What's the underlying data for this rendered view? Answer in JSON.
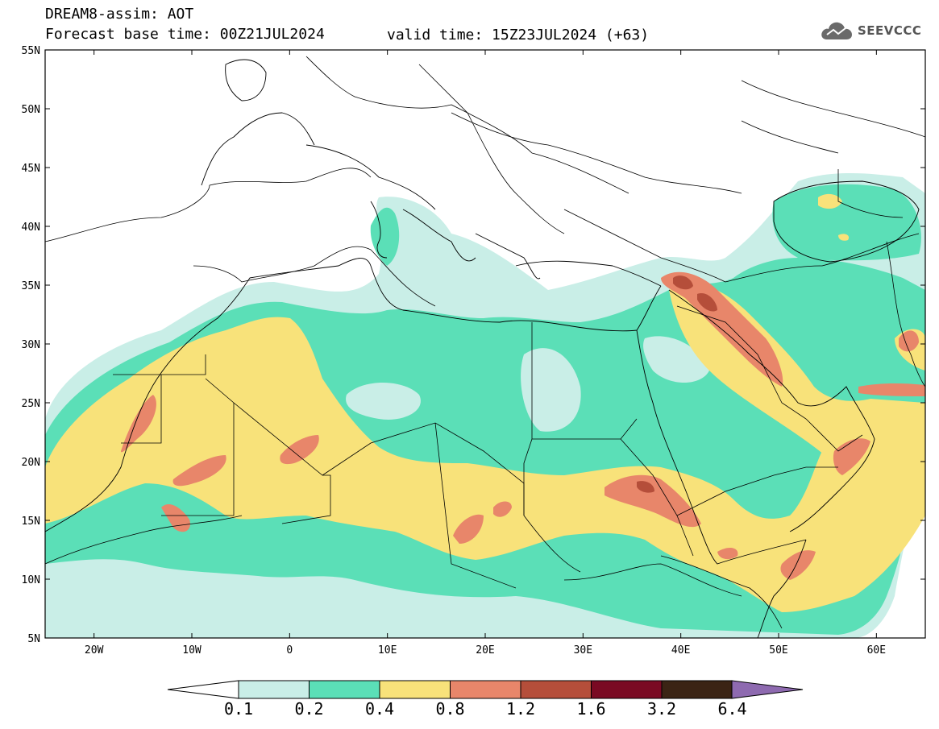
{
  "header": {
    "title": "DREAM8-assim: AOT",
    "base_time": "Forecast base time: 00Z21JUL2024",
    "valid_time": "valid time: 15Z23JUL2024 (+63)",
    "logo_text": "SEEVCCC"
  },
  "axes": {
    "lat_labels": [
      "55N",
      "50N",
      "45N",
      "40N",
      "35N",
      "30N",
      "25N",
      "20N",
      "15N",
      "10N",
      "5N"
    ],
    "lon_labels": [
      "20W",
      "10W",
      "0",
      "10E",
      "20E",
      "30E",
      "40E",
      "50E",
      "60E"
    ],
    "lat_range": [
      5,
      55
    ],
    "lon_range": [
      -25,
      65
    ]
  },
  "colorbar": {
    "labels": [
      "0.1",
      "0.2",
      "0.4",
      "0.8",
      "1.2",
      "1.6",
      "3.2",
      "6.4"
    ],
    "colors": [
      "#ffffff",
      "#c9eee7",
      "#5bdfb7",
      "#f8e27a",
      "#e8866a",
      "#b54e3a",
      "#7a0a23",
      "#3b2414",
      "#8e6ab0"
    ]
  }
}
